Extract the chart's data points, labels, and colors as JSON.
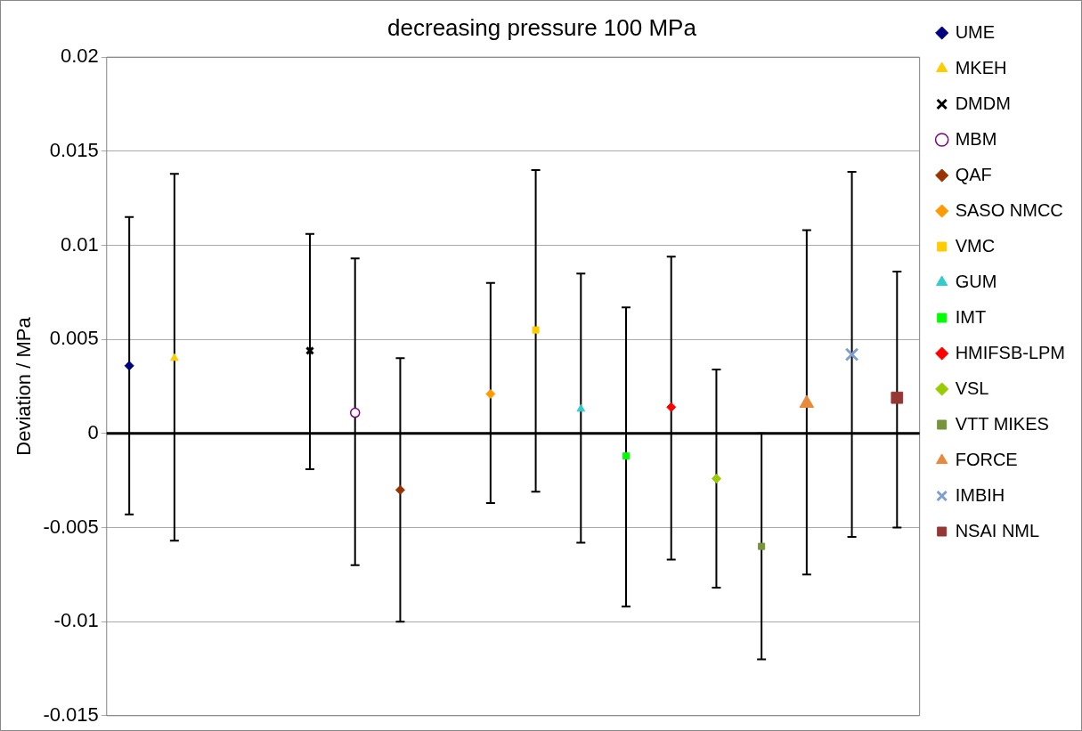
{
  "chart_data": {
    "type": "scatter",
    "title": "decreasing pressure 100 MPa",
    "ylabel": "Deviation / MPa",
    "categories": [
      null,
      null,
      null,
      null,
      null,
      null,
      null,
      null,
      null,
      null,
      null,
      null,
      null,
      null,
      null,
      null,
      null,
      null
    ],
    "ylim": [
      -0.015,
      0.02
    ],
    "yticks": [
      -0.015,
      -0.01,
      -0.005,
      0,
      0.005,
      0.01,
      0.015,
      0.02
    ],
    "grid": "y",
    "legend": "right",
    "tick_labels": "y",
    "ref_lines": [
      {
        "axis": "y",
        "value": 0,
        "color": "#000000"
      }
    ],
    "series": [
      {
        "name": "UME",
        "color": "#000080",
        "marker": "diamond",
        "values": [
          0.0036,
          null,
          null,
          null,
          null,
          null,
          null,
          null,
          null,
          null,
          null,
          null,
          null,
          null,
          null,
          null,
          null,
          null
        ],
        "errors": [
          [
            -0.0043,
            0.0115
          ],
          null,
          null,
          null,
          null,
          null,
          null,
          null,
          null,
          null,
          null,
          null,
          null,
          null,
          null,
          null,
          null,
          null
        ]
      },
      {
        "name": "MKEH",
        "color": "#ffcc00",
        "marker": "triangle",
        "values": [
          null,
          0.004,
          null,
          null,
          null,
          null,
          null,
          null,
          null,
          null,
          null,
          null,
          null,
          null,
          null,
          null,
          null,
          null
        ],
        "errors": [
          null,
          [
            -0.0057,
            0.0138
          ],
          null,
          null,
          null,
          null,
          null,
          null,
          null,
          null,
          null,
          null,
          null,
          null,
          null,
          null,
          null,
          null
        ]
      },
      {
        "name": "DMDM",
        "color": "#000000",
        "marker": "cross",
        "values": [
          null,
          null,
          null,
          null,
          0.0044,
          null,
          null,
          null,
          null,
          null,
          null,
          null,
          null,
          null,
          null,
          null,
          null,
          null
        ],
        "errors": [
          null,
          null,
          null,
          null,
          [
            -0.0019,
            0.0106
          ],
          null,
          null,
          null,
          null,
          null,
          null,
          null,
          null,
          null,
          null,
          null,
          null,
          null
        ]
      },
      {
        "name": "MBM",
        "color": "#800080",
        "marker": "circle",
        "values": [
          null,
          null,
          null,
          null,
          null,
          0.0011,
          null,
          null,
          null,
          null,
          null,
          null,
          null,
          null,
          null,
          null,
          null,
          null
        ],
        "errors": [
          null,
          null,
          null,
          null,
          null,
          [
            -0.007,
            0.0093
          ],
          null,
          null,
          null,
          null,
          null,
          null,
          null,
          null,
          null,
          null,
          null,
          null
        ]
      },
      {
        "name": "QAF",
        "color": "#993300",
        "marker": "diamond",
        "values": [
          null,
          null,
          null,
          null,
          null,
          null,
          -0.003,
          null,
          null,
          null,
          null,
          null,
          null,
          null,
          null,
          null,
          null,
          null
        ],
        "errors": [
          null,
          null,
          null,
          null,
          null,
          null,
          [
            -0.01,
            0.004
          ],
          null,
          null,
          null,
          null,
          null,
          null,
          null,
          null,
          null,
          null,
          null
        ]
      },
      {
        "name": "SASO NMCC",
        "color": "#ff9900",
        "marker": "diamond",
        "values": [
          null,
          null,
          null,
          null,
          null,
          null,
          null,
          null,
          0.0021,
          null,
          null,
          null,
          null,
          null,
          null,
          null,
          null,
          null
        ],
        "errors": [
          null,
          null,
          null,
          null,
          null,
          null,
          null,
          null,
          [
            -0.0037,
            0.008
          ],
          null,
          null,
          null,
          null,
          null,
          null,
          null,
          null,
          null
        ]
      },
      {
        "name": "VMC",
        "color": "#ffcc00",
        "marker": "square",
        "values": [
          null,
          null,
          null,
          null,
          null,
          null,
          null,
          null,
          null,
          0.0055,
          null,
          null,
          null,
          null,
          null,
          null,
          null,
          null
        ],
        "errors": [
          null,
          null,
          null,
          null,
          null,
          null,
          null,
          null,
          null,
          [
            -0.0031,
            0.014
          ],
          null,
          null,
          null,
          null,
          null,
          null,
          null,
          null
        ]
      },
      {
        "name": "GUM",
        "color": "#33cccc",
        "marker": "triangle",
        "values": [
          null,
          null,
          null,
          null,
          null,
          null,
          null,
          null,
          null,
          null,
          0.0013,
          null,
          null,
          null,
          null,
          null,
          null,
          null
        ],
        "errors": [
          null,
          null,
          null,
          null,
          null,
          null,
          null,
          null,
          null,
          null,
          [
            -0.0058,
            0.0085
          ],
          null,
          null,
          null,
          null,
          null,
          null,
          null
        ]
      },
      {
        "name": "IMT",
        "color": "#00ff00",
        "marker": "square",
        "values": [
          null,
          null,
          null,
          null,
          null,
          null,
          null,
          null,
          null,
          null,
          null,
          -0.0012,
          null,
          null,
          null,
          null,
          null,
          null
        ],
        "errors": [
          null,
          null,
          null,
          null,
          null,
          null,
          null,
          null,
          null,
          null,
          null,
          [
            -0.0092,
            0.0067
          ],
          null,
          null,
          null,
          null,
          null,
          null
        ]
      },
      {
        "name": "HMIFSB-LPM",
        "color": "#ff0000",
        "marker": "diamond",
        "values": [
          null,
          null,
          null,
          null,
          null,
          null,
          null,
          null,
          null,
          null,
          null,
          null,
          0.0014,
          null,
          null,
          null,
          null,
          null
        ],
        "errors": [
          null,
          null,
          null,
          null,
          null,
          null,
          null,
          null,
          null,
          null,
          null,
          null,
          [
            -0.0067,
            0.0094
          ],
          null,
          null,
          null,
          null,
          null
        ]
      },
      {
        "name": "VSL",
        "color": "#99cc00",
        "marker": "diamond",
        "values": [
          null,
          null,
          null,
          null,
          null,
          null,
          null,
          null,
          null,
          null,
          null,
          null,
          null,
          -0.0024,
          null,
          null,
          null,
          null
        ],
        "errors": [
          null,
          null,
          null,
          null,
          null,
          null,
          null,
          null,
          null,
          null,
          null,
          null,
          null,
          [
            -0.0082,
            0.0034
          ],
          null,
          null,
          null,
          null
        ]
      },
      {
        "name": "VTT MIKES",
        "color": "#77933c",
        "marker": "square",
        "values": [
          null,
          null,
          null,
          null,
          null,
          null,
          null,
          null,
          null,
          null,
          null,
          null,
          null,
          null,
          -0.006,
          null,
          null,
          null
        ],
        "errors": [
          null,
          null,
          null,
          null,
          null,
          null,
          null,
          null,
          null,
          null,
          null,
          null,
          null,
          null,
          [
            -0.012,
            0
          ],
          null,
          null,
          null
        ]
      },
      {
        "name": "FORCE",
        "color": "#e8893c",
        "marker": "triangle",
        "values": [
          null,
          null,
          null,
          null,
          null,
          null,
          null,
          null,
          null,
          null,
          null,
          null,
          null,
          null,
          null,
          0.0016,
          null,
          null
        ],
        "errors": [
          null,
          null,
          null,
          null,
          null,
          null,
          null,
          null,
          null,
          null,
          null,
          null,
          null,
          null,
          null,
          [
            -0.0075,
            0.0108
          ],
          null,
          null
        ]
      },
      {
        "name": "IMBIH",
        "color": "#7f9fcf",
        "marker": "cross",
        "values": [
          null,
          null,
          null,
          null,
          null,
          null,
          null,
          null,
          null,
          null,
          null,
          null,
          null,
          null,
          null,
          null,
          0.0042,
          null
        ],
        "errors": [
          null,
          null,
          null,
          null,
          null,
          null,
          null,
          null,
          null,
          null,
          null,
          null,
          null,
          null,
          null,
          null,
          [
            -0.0055,
            0.0139
          ],
          null
        ]
      },
      {
        "name": "NSAI NML",
        "color": "#953735",
        "marker": "square",
        "values": [
          null,
          null,
          null,
          null,
          null,
          null,
          null,
          null,
          null,
          null,
          null,
          null,
          null,
          null,
          null,
          null,
          null,
          0.0019
        ],
        "errors": [
          null,
          null,
          null,
          null,
          null,
          null,
          null,
          null,
          null,
          null,
          null,
          null,
          null,
          null,
          null,
          null,
          null,
          [
            -0.005,
            0.0086
          ]
        ]
      }
    ]
  }
}
